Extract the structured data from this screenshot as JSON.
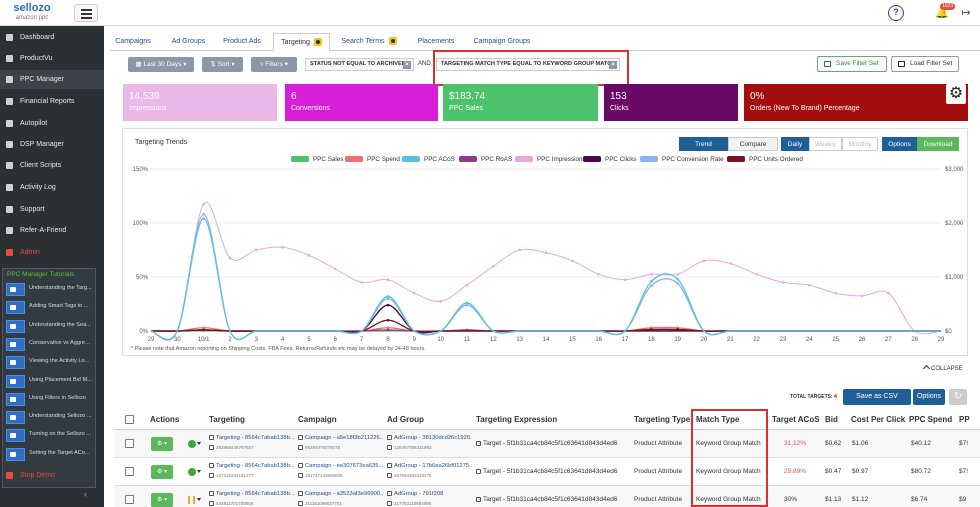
{
  "brand": {
    "name": "sellozo",
    "tagline": "amazon ppc"
  },
  "header": {
    "notifications": "1023"
  },
  "sidebar": {
    "items": [
      {
        "label": "Dashboard",
        "icon": "dashboard-icon"
      },
      {
        "label": "ProductVu",
        "icon": "product-icon"
      },
      {
        "label": "PPC Manager",
        "icon": "ppc-icon"
      },
      {
        "label": "Financial Reports",
        "icon": "report-icon"
      },
      {
        "label": "Autopilot",
        "icon": "autopilot-icon"
      },
      {
        "label": "DSP Manager",
        "icon": "dsp-icon"
      },
      {
        "label": "Client Scripts",
        "icon": "script-icon"
      },
      {
        "label": "Activity Log",
        "icon": "log-icon"
      },
      {
        "label": "Support",
        "icon": "support-icon"
      },
      {
        "label": "Refer-A-Friend",
        "icon": "refer-icon"
      },
      {
        "label": "Admin",
        "icon": "admin-icon"
      }
    ],
    "tutorials_title": "PPC Manager Tutorials",
    "tutorials": [
      "Understanding the Targ...",
      "Adding Smart Tags to ...",
      "Understanding the Sea...",
      "Conservative vs Aggre...",
      "Viewing the Activity Lo...",
      "Using Placement Bid M...",
      "Using Filters in Sellozo",
      "Understanding Sellozo ...",
      "Turning on the Sellozo ...",
      "Setting the Target ACo..."
    ],
    "stop_demo": "Stop Demo"
  },
  "tabs": [
    {
      "label": "Campaigns",
      "active": false,
      "badge": false
    },
    {
      "label": "Ad Groups",
      "active": false,
      "badge": false
    },
    {
      "label": "Product Ads",
      "active": false,
      "badge": false
    },
    {
      "label": "Targeting",
      "active": true,
      "badge": true
    },
    {
      "label": "Search Terms",
      "active": false,
      "badge": true
    },
    {
      "label": "Placements",
      "active": false,
      "badge": false
    },
    {
      "label": "Campaign Groups",
      "active": false,
      "badge": false
    }
  ],
  "filters": {
    "date_range": "Last 30 Days",
    "sort": "Sort",
    "filters": "Filters",
    "chips": [
      "STATUS NOT EQUAL TO ARCHIVED",
      "TARGETING MATCH TYPE EQUAL TO KEYWORD GROUP MATCH"
    ],
    "joiner": "AND",
    "save_filter": "Save Filter Set",
    "load_filter": "Load Filter Set"
  },
  "kpis": [
    {
      "value": "14,539",
      "label": "Impressions",
      "color": "#e9b8e9"
    },
    {
      "value": "6",
      "label": "Conversions",
      "color": "#d81fd8"
    },
    {
      "value": "$183.74",
      "label": "PPC Sales",
      "color": "#4cc26a"
    },
    {
      "value": "153",
      "label": "Clicks",
      "color": "#6a0a66"
    },
    {
      "value": "0%",
      "label": "Orders (New To Brand) Percentage",
      "color": "#a50e0e"
    }
  ],
  "chart_panel": {
    "title": "Targeting Trends",
    "view_buttons": [
      "Trend",
      "Compare"
    ],
    "period_buttons": [
      "Daily",
      "Weekly",
      "Monthly"
    ],
    "options": "Options",
    "download": "Download",
    "note": "* Please note that Amazon reporting on Shipping Costs, FBA Fees, Returns/Refunds etc may be delayed by 24-48 hours.",
    "collapse": "COLLAPSE"
  },
  "chart_data": {
    "type": "line",
    "title": "Targeting Trends",
    "categories": [
      "29",
      "30",
      "10/1",
      "2",
      "3",
      "4",
      "5",
      "6",
      "7",
      "8",
      "9",
      "10",
      "11",
      "12",
      "13",
      "14",
      "15",
      "16",
      "17",
      "18",
      "19",
      "20",
      "21",
      "22",
      "23",
      "24",
      "25",
      "26",
      "27",
      "28",
      "29"
    ],
    "left_axis": {
      "ticks": [
        "0%",
        "50%",
        "100%",
        "150%"
      ],
      "range": [
        0,
        150
      ]
    },
    "right_axis": {
      "ticks": [
        "$0",
        "$1,000",
        "$2,000",
        "$3,000"
      ],
      "range": [
        0,
        3000
      ]
    },
    "series": [
      {
        "name": "PPC Sales",
        "color": "#4cc26a",
        "axis": "right",
        "values": [
          0,
          0,
          0,
          0,
          0,
          0,
          0,
          0,
          0,
          0,
          0,
          0,
          0,
          0,
          0,
          0,
          0,
          0,
          0,
          0,
          0,
          0,
          0,
          0,
          0,
          0,
          0,
          0,
          0,
          0,
          0
        ]
      },
      {
        "name": "PPC Spend",
        "color": "#f07070",
        "axis": "right",
        "values": [
          0,
          0,
          60,
          0,
          0,
          0,
          0,
          0,
          0,
          60,
          0,
          0,
          0,
          0,
          0,
          0,
          0,
          0,
          0,
          60,
          60,
          0,
          0,
          0,
          0,
          0,
          0,
          0,
          0,
          0,
          0
        ]
      },
      {
        "name": "PPC ACoS",
        "color": "#5bc0de",
        "axis": "left",
        "values": [
          0,
          0,
          104,
          0,
          0,
          0,
          0,
          0,
          0,
          32,
          0,
          0,
          26,
          0,
          0,
          0,
          0,
          0,
          0,
          46,
          48,
          0,
          0,
          0,
          0,
          0,
          0,
          0,
          0,
          0,
          0
        ]
      },
      {
        "name": "PPC RoAS",
        "color": "#8e3a8e",
        "axis": "left",
        "values": [
          0,
          0,
          1,
          0,
          0,
          0,
          0,
          0,
          0,
          1,
          0,
          0,
          1,
          0,
          0,
          0,
          0,
          0,
          0,
          1,
          1,
          0,
          0,
          0,
          0,
          0,
          0,
          0,
          0,
          0,
          0
        ]
      },
      {
        "name": "PPC Impressions",
        "color": "#e7a8e0",
        "axis": "right",
        "values": [
          0,
          0,
          2350,
          1350,
          1500,
          1550,
          1400,
          1150,
          900,
          950,
          700,
          550,
          850,
          1200,
          1500,
          1450,
          1300,
          1050,
          950,
          1050,
          1050,
          1300,
          1250,
          1050,
          900,
          850,
          700,
          650,
          700,
          0,
          0
        ]
      },
      {
        "name": "PPC Clicks",
        "color": "#4a0a4a",
        "axis": "right",
        "values": [
          0,
          0,
          20,
          0,
          0,
          0,
          0,
          0,
          0,
          480,
          0,
          0,
          0,
          0,
          0,
          0,
          0,
          0,
          0,
          0,
          0,
          0,
          0,
          0,
          0,
          0,
          0,
          0,
          0,
          0,
          0
        ]
      },
      {
        "name": "PPC Conversion Rate",
        "color": "#8ab4f0",
        "axis": "left",
        "values": [
          0,
          0,
          108,
          0,
          0,
          0,
          0,
          0,
          0,
          30,
          0,
          0,
          24,
          0,
          0,
          0,
          0,
          0,
          0,
          42,
          44,
          0,
          0,
          0,
          0,
          0,
          0,
          0,
          0,
          0,
          0
        ]
      },
      {
        "name": "PPC Units Ordered",
        "color": "#7a1020",
        "axis": "right",
        "values": [
          0,
          0,
          20,
          0,
          0,
          0,
          0,
          0,
          0,
          200,
          0,
          0,
          0,
          0,
          0,
          0,
          0,
          0,
          0,
          30,
          30,
          0,
          0,
          0,
          0,
          0,
          0,
          0,
          0,
          0,
          0
        ]
      }
    ]
  },
  "table": {
    "total_targets": "TOTAL TARGETS: 4",
    "save_csv": "Save as CSV",
    "options": "Options",
    "headers": [
      "Actions",
      "Targeting",
      "Campaign",
      "Ad Group",
      "Targeting Expression",
      "Targeting Type",
      "Match Type",
      "Target ACoS",
      "Bid",
      "Cost Per Click",
      "PPC Spend",
      "PP"
    ],
    "rows": [
      {
        "targeting": "Targeting - 8564c7abab138b...",
        "targeting_id": "293968446767657",
        "campaign": "Campaign - a5e18f3b211226...",
        "campaign_id": "89294075076078",
        "adgroup": "AdGroup - 38130dcd26c1920...",
        "adgroup_id": "128467098431893",
        "expression": "Target - 5f1b31ca4cb84c5f1c63641d843d4ed6",
        "type": "Product Attribute",
        "match": "Keyword Group Match",
        "acos": "31.12%",
        "acos_red": true,
        "bid": "$0.62",
        "cpc": "$1.06",
        "spend": "$40.12",
        "ppc": "$7!",
        "status": "active"
      },
      {
        "targeting": "Targeting - 8564c7abab138b...",
        "targeting_id": "157316234181277",
        "campaign": "Campaign - ee307673ea635...",
        "campaign_id": "181747443859838",
        "adgroup": "AdGroup - 17b6ea26bf01275...",
        "adgroup_id": "267994353333275",
        "expression": "Target - 5f1b31ca4cb84c5f1c63641d843d4ed6",
        "type": "Product Attribute",
        "match": "Keyword Group Match",
        "acos": "25.89%",
        "acos_red": true,
        "bid": "$0.47",
        "cpc": "$0.97",
        "spend": "$80.72",
        "ppc": "$7!",
        "status": "active"
      },
      {
        "targeting": "Targeting - 8564c7abab138b...",
        "targeting_id": "444911701759055",
        "campaign": "Campaign - a3523af3e96900...",
        "campaign_id": "311151098527781",
        "adgroup": "AdGroup - 791f208",
        "adgroup_id": "217753115654085",
        "expression": "Target - 5f1b31ca4cb84c5f1c63641d843d4ed6",
        "type": "Product Attribute",
        "match": "Keyword Group Match",
        "acos": "30%",
        "acos_red": false,
        "bid": "$1.13",
        "cpc": "$1.12",
        "spend": "$6.74",
        "ppc": "$9",
        "status": "paused"
      }
    ]
  }
}
